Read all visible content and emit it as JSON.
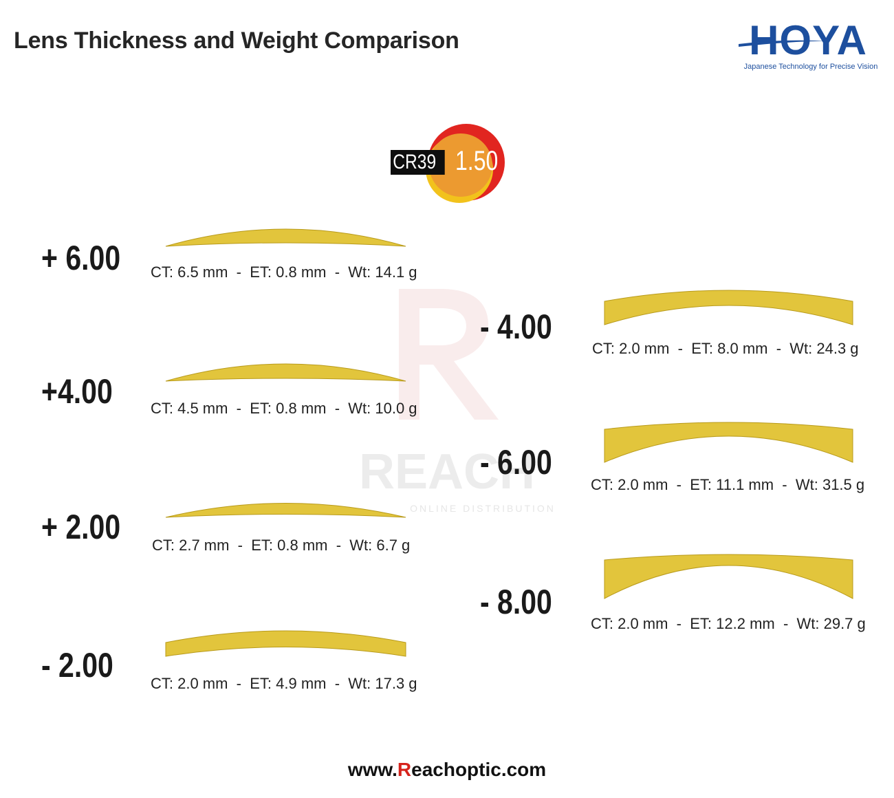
{
  "header": {
    "title": "Lens Thickness and Weight Comparison"
  },
  "logo": {
    "name": "HOYA",
    "tagline": "Japanese Technology for Precise Vision",
    "color": "#1d4f9e"
  },
  "watermark": {
    "name": "REACH",
    "subtitle": "ONLINE DISTRIBUTION"
  },
  "material_badge": {
    "label": "CR39",
    "index": "1.50",
    "colors": {
      "outer": "#e12520",
      "inner": "#ec9a30",
      "shadow": "#f2c21c"
    }
  },
  "lens_color": "#e2c53c",
  "lenses": [
    {
      "power": "+ 6.00",
      "spec": "CT: 6.5 mm  -  ET: 0.8 mm  -  Wt: 14.1 g"
    },
    {
      "power": "+4.00",
      "spec": "CT: 4.5 mm  -  ET: 0.8 mm  -  Wt: 10.0 g"
    },
    {
      "power": "+ 2.00",
      "spec": "CT: 2.7 mm  -  ET: 0.8 mm  -  Wt: 6.7 g"
    },
    {
      "power": "- 2.00",
      "spec": "CT: 2.0 mm  -  ET: 4.9 mm  -  Wt: 17.3 g"
    },
    {
      "power": "- 4.00",
      "spec": "CT: 2.0 mm  -  ET: 8.0 mm  -  Wt: 24.3 g"
    },
    {
      "power": "- 6.00",
      "spec": "CT: 2.0 mm  -  ET: 11.1 mm  -  Wt: 31.5 g"
    },
    {
      "power": "- 8.00",
      "spec": "CT: 2.0 mm  -  ET: 12.2 mm  -  Wt: 29.7 g"
    }
  ],
  "footer": {
    "prefix": "www.",
    "highlight": "R",
    "suffix": "eachoptic.com"
  }
}
